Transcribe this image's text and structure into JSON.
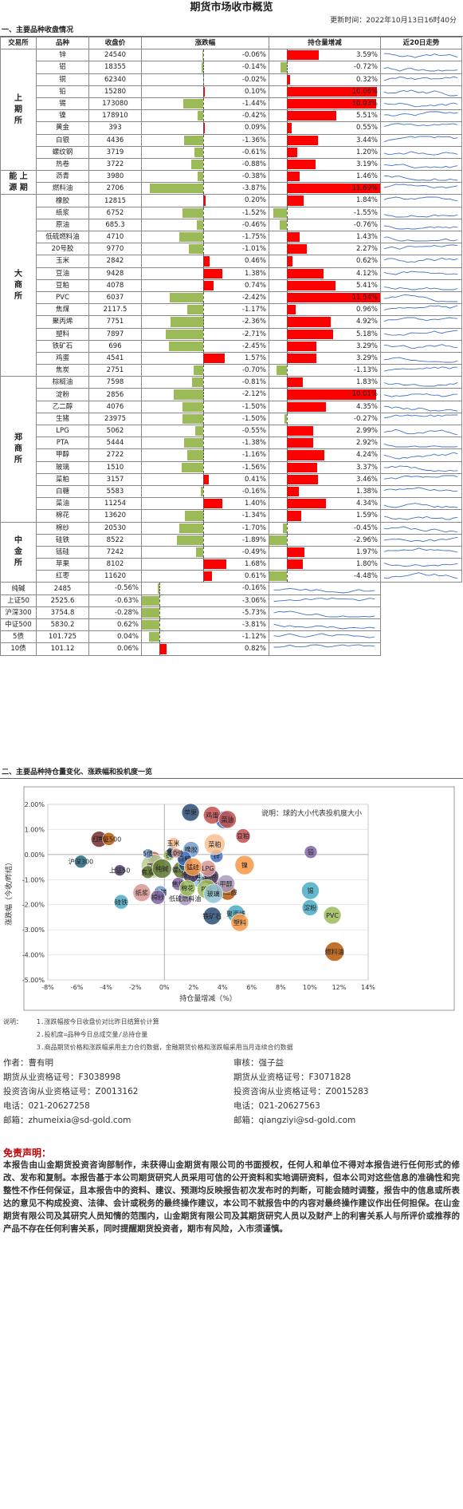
{
  "header": {
    "title": "期货市场收市概览",
    "updated": "更新时间：2022年10月13日16时40分"
  },
  "sections": {
    "s1": "一、主要品种收盘情况",
    "s2": "二、主要品种持仓量变化、涨跌幅和投机度一览"
  },
  "table": {
    "headers": [
      "交易所",
      "品种",
      "收盘价",
      "涨跌幅",
      "持仓量增减",
      "近20日走势"
    ],
    "exchanges": [
      {
        "name": "上\n期\n所",
        "rows": 10
      },
      {
        "name": "能 上\n源 期",
        "rows": 2
      },
      {
        "name": "大\n商\n所",
        "rows": 15
      },
      {
        "name": "郑\n商\n所",
        "rows": 12
      },
      {
        "name": "中\n金\n所",
        "rows": 5
      }
    ],
    "rows": [
      {
        "n": "锌",
        "p": "24540",
        "c": "-0.06%",
        "o": "3.59%"
      },
      {
        "n": "铝",
        "p": "18355",
        "c": "-0.14%",
        "o": "-0.72%"
      },
      {
        "n": "铜",
        "p": "62340",
        "c": "-0.02%",
        "o": "0.32%"
      },
      {
        "n": "铅",
        "p": "15280",
        "c": "0.10%",
        "o": "10.06%"
      },
      {
        "n": "锡",
        "p": "173080",
        "c": "-1.44%",
        "o": "10.03%"
      },
      {
        "n": "镍",
        "p": "178910",
        "c": "-0.42%",
        "o": "5.51%"
      },
      {
        "n": "黄金",
        "p": "393",
        "c": "0.09%",
        "o": "0.55%"
      },
      {
        "n": "白银",
        "p": "4436",
        "c": "-1.36%",
        "o": "3.44%"
      },
      {
        "n": "螺纹钢",
        "p": "3719",
        "c": "-0.61%",
        "o": "1.20%"
      },
      {
        "n": "热卷",
        "p": "3722",
        "c": "-0.88%",
        "o": "3.19%"
      },
      {
        "n": "沥青",
        "p": "3980",
        "c": "-0.38%",
        "o": "1.46%"
      },
      {
        "n": "燃料油",
        "p": "2706",
        "c": "-3.87%",
        "o": "11.69%"
      },
      {
        "n": "橡胶",
        "p": "12815",
        "c": "0.20%",
        "o": "1.84%"
      },
      {
        "n": "纸浆",
        "p": "6752",
        "c": "-1.52%",
        "o": "-1.55%"
      },
      {
        "n": "原油",
        "p": "685.3",
        "c": "-0.46%",
        "o": "-0.76%"
      },
      {
        "n": "低硫燃料油",
        "p": "4710",
        "c": "-1.75%",
        "o": "1.43%"
      },
      {
        "n": "20号胶",
        "p": "9770",
        "c": "-1.01%",
        "o": "2.27%"
      },
      {
        "n": "玉米",
        "p": "2842",
        "c": "0.46%",
        "o": "0.62%"
      },
      {
        "n": "豆油",
        "p": "9428",
        "c": "1.38%",
        "o": "4.12%"
      },
      {
        "n": "豆粕",
        "p": "4078",
        "c": "0.74%",
        "o": "5.41%"
      },
      {
        "n": "PVC",
        "p": "6037",
        "c": "-2.42%",
        "o": "11.54%"
      },
      {
        "n": "焦煤",
        "p": "2117.5",
        "c": "-1.17%",
        "o": "0.96%"
      },
      {
        "n": "聚丙烯",
        "p": "7751",
        "c": "-2.36%",
        "o": "4.92%"
      },
      {
        "n": "塑料",
        "p": "7897",
        "c": "-2.71%",
        "o": "5.18%"
      },
      {
        "n": "铁矿石",
        "p": "696",
        "c": "-2.45%",
        "o": "3.29%"
      },
      {
        "n": "鸡蛋",
        "p": "4541",
        "c": "1.57%",
        "o": "3.29%"
      },
      {
        "n": "焦炭",
        "p": "2751",
        "c": "-0.70%",
        "o": "-1.13%"
      },
      {
        "n": "棕榈油",
        "p": "7598",
        "c": "-0.81%",
        "o": "1.83%"
      },
      {
        "n": "淀粉",
        "p": "2856",
        "c": "-2.12%",
        "o": "10.01%"
      },
      {
        "n": "乙二醇",
        "p": "4076",
        "c": "-1.50%",
        "o": "4.35%"
      },
      {
        "n": "生猪",
        "p": "23975",
        "c": "-1.50%",
        "o": "-0.27%"
      },
      {
        "n": "LPG",
        "p": "5062",
        "c": "-0.55%",
        "o": "2.99%"
      },
      {
        "n": "PTA",
        "p": "5444",
        "c": "-1.38%",
        "o": "2.92%"
      },
      {
        "n": "甲醇",
        "p": "2722",
        "c": "-1.16%",
        "o": "4.24%"
      },
      {
        "n": "玻璃",
        "p": "1510",
        "c": "-1.56%",
        "o": "3.37%"
      },
      {
        "n": "菜粕",
        "p": "3157",
        "c": "0.41%",
        "o": "3.46%"
      },
      {
        "n": "白糖",
        "p": "5583",
        "c": "-0.16%",
        "o": "1.38%"
      },
      {
        "n": "菜油",
        "p": "11254",
        "c": "1.40%",
        "o": "4.34%"
      },
      {
        "n": "棉花",
        "p": "13620",
        "c": "-1.34%",
        "o": "1.59%"
      },
      {
        "n": "棉纱",
        "p": "20530",
        "c": "-1.70%",
        "o": "-0.45%"
      },
      {
        "n": "硅铁",
        "p": "8522",
        "c": "-1.89%",
        "o": "-2.96%"
      },
      {
        "n": "锰硅",
        "p": "7242",
        "c": "-0.49%",
        "o": "1.97%"
      },
      {
        "n": "苹果",
        "p": "8102",
        "c": "1.68%",
        "o": "1.80%"
      },
      {
        "n": "红枣",
        "p": "11620",
        "c": "0.61%",
        "o": "-4.48%"
      },
      {
        "n": "纯碱",
        "p": "2485",
        "c": "-0.56%",
        "o": "-0.16%"
      },
      {
        "n": "上证50",
        "p": "2525.6",
        "c": "-0.63%",
        "o": "-3.06%"
      },
      {
        "n": "沪深300",
        "p": "3754.8",
        "c": "-0.28%",
        "o": "-5.73%"
      },
      {
        "n": "中证500",
        "p": "5830.2",
        "c": "0.62%",
        "o": "-3.81%"
      },
      {
        "n": "5债",
        "p": "101.725",
        "c": "0.04%",
        "o": "-1.12%"
      },
      {
        "n": "10债",
        "p": "101.12",
        "c": "0.06%",
        "o": "0.82%"
      }
    ]
  },
  "chart_data": {
    "type": "scatter",
    "title": "",
    "note": "说明：球的大小代表投机度大小",
    "xlabel": "持仓量增减（%）",
    "ylabel": "涨跌幅（今收/昨结）",
    "xlim": [
      -8,
      14
    ],
    "ylim": [
      -5,
      2
    ],
    "xticks": [
      "-8%",
      "-6%",
      "-4%",
      "-2%",
      "0%",
      "2%",
      "4%",
      "6%",
      "8%",
      "10%",
      "12%",
      "14%"
    ],
    "yticks": [
      "2.00%",
      "1.00%",
      "0.00%",
      "-1.00%",
      "-2.00%",
      "-3.00%",
      "-4.00%",
      "-5.00%"
    ],
    "points": [
      {
        "label": "锌",
        "x": 3.59,
        "y": -0.06,
        "s": 8,
        "c": "#4472c4"
      },
      {
        "label": "铝",
        "x": -0.72,
        "y": -0.14,
        "s": 8,
        "c": "#c0504d"
      },
      {
        "label": "铜",
        "x": 0.32,
        "y": -0.02,
        "s": 7,
        "c": "#9bbb59"
      },
      {
        "label": "铅",
        "x": 10.06,
        "y": 0.1,
        "s": 8,
        "c": "#8064a2"
      },
      {
        "label": "锡",
        "x": 10.03,
        "y": -1.44,
        "s": 11,
        "c": "#4bacc6"
      },
      {
        "label": "镍",
        "x": 5.51,
        "y": -0.42,
        "s": 12,
        "c": "#f79646"
      },
      {
        "label": "黄金",
        "x": 0.55,
        "y": 0.09,
        "s": 7,
        "c": "#2c4d75"
      },
      {
        "label": "白银",
        "x": 3.44,
        "y": -1.36,
        "s": 10,
        "c": "#772c2a"
      },
      {
        "label": "螺纹钢",
        "x": 1.2,
        "y": -0.61,
        "s": 11,
        "c": "#5f7530"
      },
      {
        "label": "热卷",
        "x": 3.19,
        "y": -0.88,
        "s": 10,
        "c": "#4d3b62"
      },
      {
        "label": "沥青",
        "x": 1.46,
        "y": -0.38,
        "s": 9,
        "c": "#276a7c"
      },
      {
        "label": "燃料油",
        "x": 11.69,
        "y": -3.87,
        "s": 12,
        "c": "#b65708"
      },
      {
        "label": "橡胶",
        "x": 1.84,
        "y": 0.2,
        "s": 10,
        "c": "#729aca"
      },
      {
        "label": "纸浆",
        "x": -1.55,
        "y": -1.52,
        "s": 11,
        "c": "#d99694"
      },
      {
        "label": "原油",
        "x": -0.76,
        "y": -0.46,
        "s": 15,
        "c": "#b9cd96"
      },
      {
        "label": "低硫燃料油",
        "x": 1.43,
        "y": -1.75,
        "s": 9,
        "c": "#a99bbd"
      },
      {
        "label": "20号胶",
        "x": 2.27,
        "y": -1.01,
        "s": 9,
        "c": "#91c3d5"
      },
      {
        "label": "玉米",
        "x": 0.62,
        "y": 0.46,
        "s": 7,
        "c": "#fac090"
      },
      {
        "label": "豆油",
        "x": 4.12,
        "y": 1.38,
        "s": 11,
        "c": "#4472c4"
      },
      {
        "label": "豆粕",
        "x": 5.41,
        "y": 0.74,
        "s": 9,
        "c": "#c0504d"
      },
      {
        "label": "PVC",
        "x": 11.54,
        "y": -2.42,
        "s": 11,
        "c": "#9bbb59"
      },
      {
        "label": "焦煤",
        "x": 0.96,
        "y": -1.17,
        "s": 8,
        "c": "#8064a2"
      },
      {
        "label": "聚丙烯",
        "x": 4.92,
        "y": -2.36,
        "s": 11,
        "c": "#4bacc6"
      },
      {
        "label": "塑料",
        "x": 5.18,
        "y": -2.71,
        "s": 11,
        "c": "#f79646"
      },
      {
        "label": "铁矿石",
        "x": 3.29,
        "y": -2.45,
        "s": 11,
        "c": "#2c4d75"
      },
      {
        "label": "鸡蛋",
        "x": 3.29,
        "y": 1.57,
        "s": 11,
        "c": "#c0504d"
      },
      {
        "label": "焦炭",
        "x": -1.13,
        "y": -0.7,
        "s": 8,
        "c": "#5f7530"
      },
      {
        "label": "棕榈油",
        "x": 1.83,
        "y": -0.81,
        "s": 10,
        "c": "#4d3b62"
      },
      {
        "label": "淀粉",
        "x": 10.01,
        "y": -2.12,
        "s": 10,
        "c": "#4bacc6"
      },
      {
        "label": "乙二醇",
        "x": 4.35,
        "y": -1.5,
        "s": 10,
        "c": "#b65708"
      },
      {
        "label": "生猪",
        "x": -0.27,
        "y": -1.5,
        "s": 8,
        "c": "#729aca"
      },
      {
        "label": "LPG",
        "x": 2.99,
        "y": -0.55,
        "s": 10,
        "c": "#d99694"
      },
      {
        "label": "PTA",
        "x": 2.92,
        "y": -1.38,
        "s": 12,
        "c": "#9bbb59"
      },
      {
        "label": "甲醇",
        "x": 4.24,
        "y": -1.16,
        "s": 11,
        "c": "#a99bbd"
      },
      {
        "label": "玻璃",
        "x": 3.37,
        "y": -1.56,
        "s": 12,
        "c": "#91c3d5"
      },
      {
        "label": "菜粕",
        "x": 3.46,
        "y": 0.41,
        "s": 13,
        "c": "#fac090"
      },
      {
        "label": "白糖",
        "x": 1.38,
        "y": -0.16,
        "s": 9,
        "c": "#4472c4"
      },
      {
        "label": "菜油",
        "x": 4.34,
        "y": 1.4,
        "s": 11,
        "c": "#c0504d"
      },
      {
        "label": "棉花",
        "x": 1.59,
        "y": -1.34,
        "s": 10,
        "c": "#9bbb59"
      },
      {
        "label": "棉纱",
        "x": -0.45,
        "y": -1.7,
        "s": 9,
        "c": "#8064a2"
      },
      {
        "label": "硅铁",
        "x": -2.96,
        "y": -1.89,
        "s": 9,
        "c": "#4bacc6"
      },
      {
        "label": "锰硅",
        "x": 1.97,
        "y": -0.49,
        "s": 11,
        "c": "#f79646"
      },
      {
        "label": "苹果",
        "x": 1.8,
        "y": 1.68,
        "s": 11,
        "c": "#2c4d75"
      },
      {
        "label": "红枣",
        "x": -4.48,
        "y": 0.61,
        "s": 10,
        "c": "#772c2a"
      },
      {
        "label": "纯碱",
        "x": -0.16,
        "y": -0.56,
        "s": 12,
        "c": "#5f7530"
      },
      {
        "label": "上证50",
        "x": -3.06,
        "y": -0.63,
        "s": 7,
        "c": "#4d3b62"
      },
      {
        "label": "沪深300",
        "x": -5.73,
        "y": -0.28,
        "s": 8,
        "c": "#276a7c"
      },
      {
        "label": "中证500",
        "x": -3.81,
        "y": 0.62,
        "s": 8,
        "c": "#b65708"
      },
      {
        "label": "5债",
        "x": -1.12,
        "y": 0.04,
        "s": 6,
        "c": "#729aca"
      },
      {
        "label": "10债",
        "x": 0.82,
        "y": 0.06,
        "s": 6,
        "c": "#d99694"
      }
    ]
  },
  "notes": [
    "说明：",
    "1.涨跌幅按今日收盘价对比昨日结算价计算",
    "2.投机度=品种今日总成交量/总持仓量",
    "3.商品期货价格和涨跌幅采用主力合约数据，金融期货价格和涨跌幅采用当月连续合约数据"
  ],
  "authors": {
    "left": [
      "作者：曹有明",
      "期货从业资格证号：F3038998",
      "投资咨询从业资格证号：Z0013162",
      "电话：021-20627258",
      "邮箱：zhumeixia@sd-gold.com"
    ],
    "right": [
      "审核：强子益",
      "期货从业资格证号：F3071828",
      "投资咨询从业资格证号：Z0015283",
      "电话：021-20627563",
      "邮箱：qiangziyi@sd-gold.com"
    ]
  },
  "disclaimer": {
    "title": "免责声明：",
    "text": "本报告由山金期货投资咨询部制作，未获得山金期货有限公司的书面授权，任何人和单位不得对本报告进行任何形式的修改、发布和复制。本报告基于本公司期货研究人员采用可信的公开资料和实地调研资料，但本公司对这些信息的准确性和完整性不作任何保证，且本报告中的资料、建议、预测均反映报告初次发布时的判断，可能会随时调整，报告中的信息或所表达的意见不构成投资、法律、会计或税务的最终操作建议，本公司不就报告中的内容对最终操作建议作出任何担保。在山金期货有限公司及其研究人员知情的范围内，山金期货有限公司及其期货研究人员以及财产上的利害关系人与所评价或推荐的产品不存在任何利害关系，同时提醒期货投资者，期市有风险，入市须谨慎。"
  },
  "colors": {
    "up": "#ff0000",
    "down": "#9bbb59",
    "spark": "#4472c4",
    "disclaimer": "#c00000"
  }
}
